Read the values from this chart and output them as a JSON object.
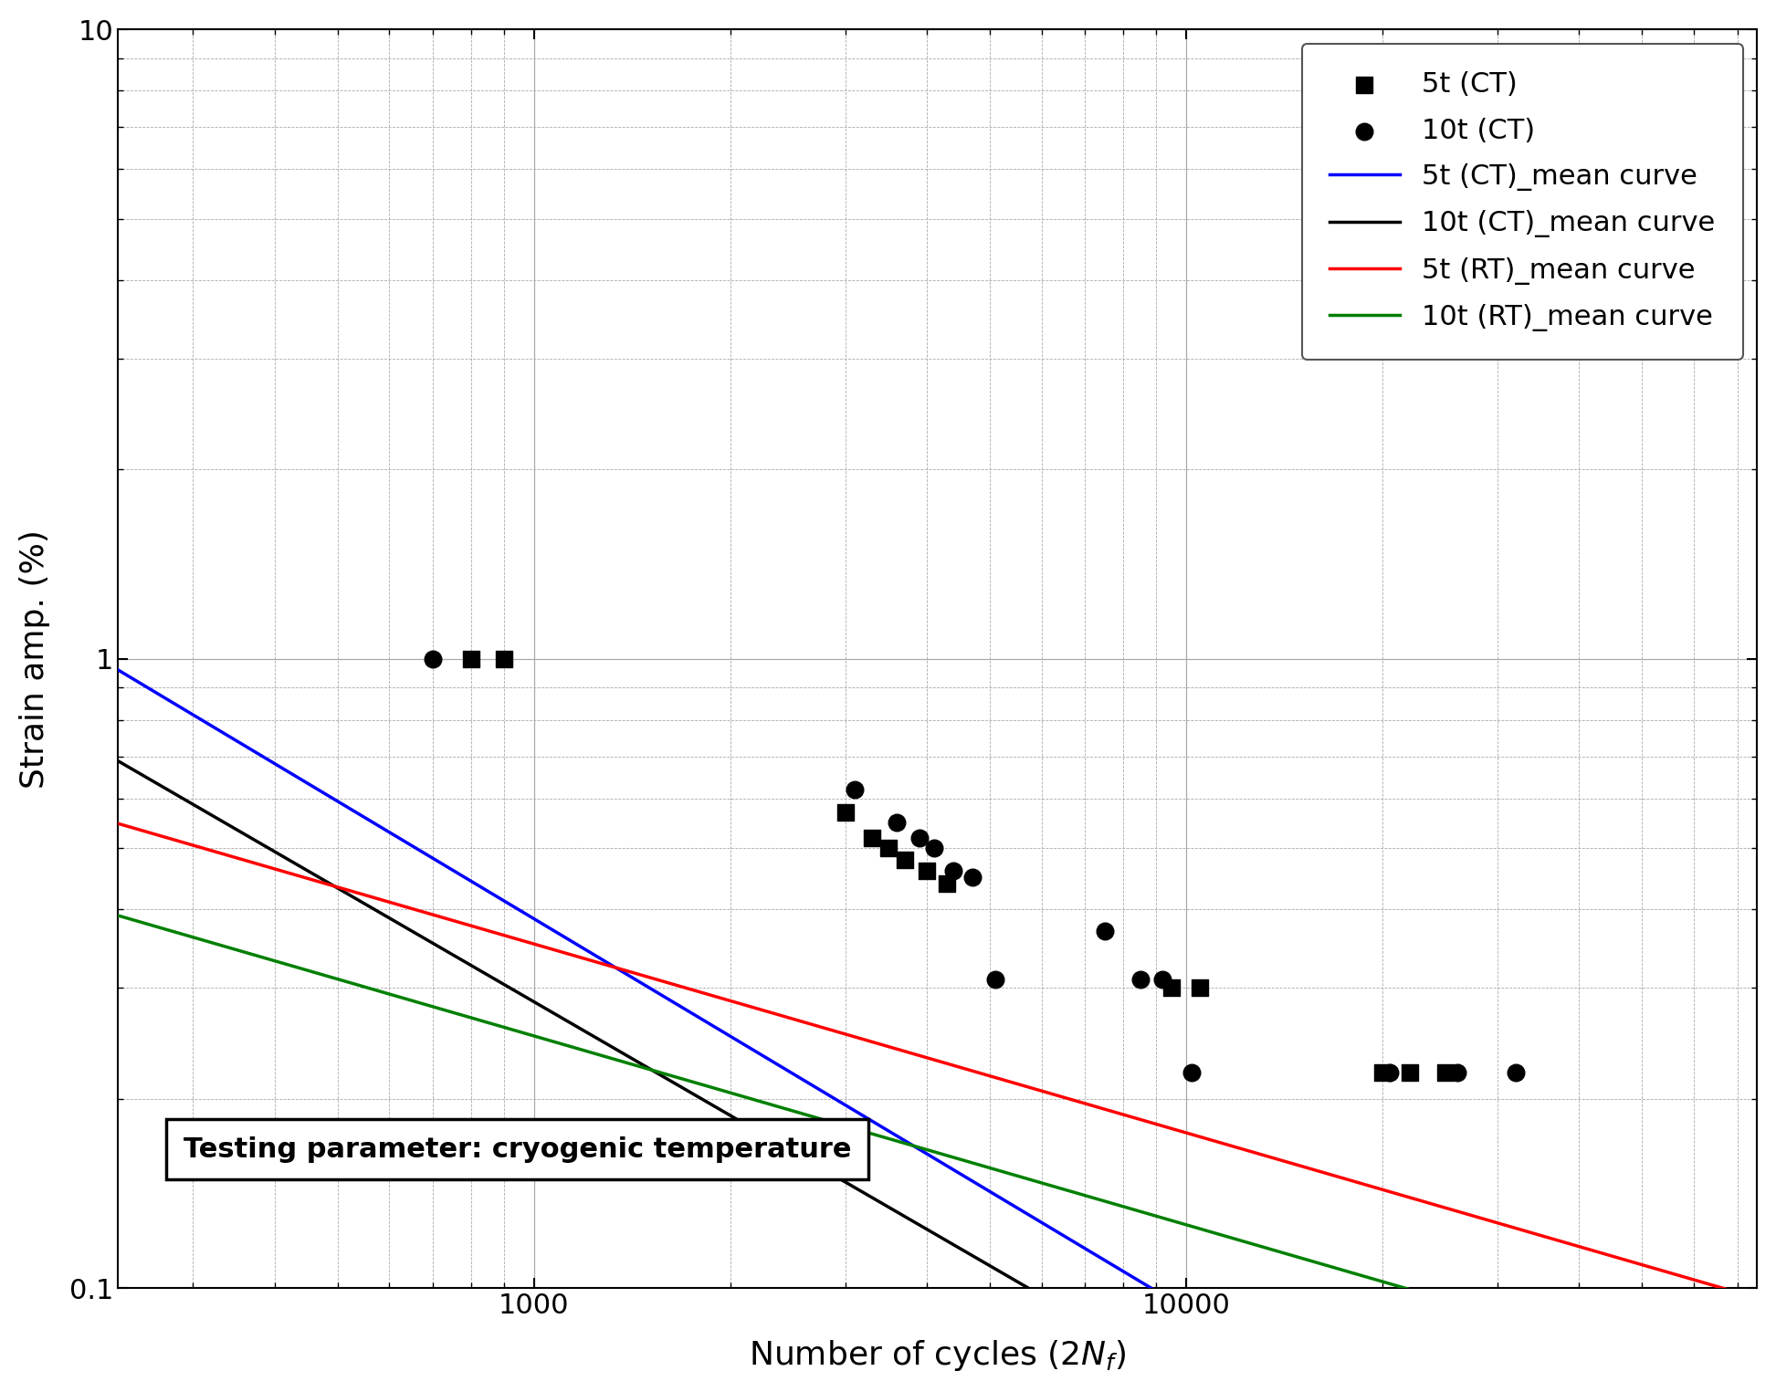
{
  "xlabel": "Number of cycles (2$N_f$)",
  "ylabel": "Strain amp. (%)",
  "xlim": [
    230,
    75000
  ],
  "ylim": [
    0.1,
    10
  ],
  "scatter_5t_CT": {
    "x": [
      800,
      900,
      3000,
      3300,
      3500,
      3700,
      4000,
      4300,
      9500,
      10500,
      20000,
      22000,
      25000
    ],
    "y": [
      1.0,
      1.0,
      0.57,
      0.52,
      0.5,
      0.48,
      0.46,
      0.44,
      0.3,
      0.3,
      0.22,
      0.22,
      0.22
    ],
    "marker": "s",
    "color": "black",
    "label": "5t (CT)"
  },
  "scatter_10t_CT": {
    "x": [
      700,
      3100,
      3600,
      3900,
      4100,
      4400,
      4700,
      5100,
      7500,
      8500,
      9200,
      10200,
      20500,
      26000,
      32000
    ],
    "y": [
      1.0,
      0.62,
      0.55,
      0.52,
      0.5,
      0.46,
      0.45,
      0.31,
      0.37,
      0.31,
      0.31,
      0.22,
      0.22,
      0.22,
      0.22
    ],
    "marker": "o",
    "color": "black",
    "label": "10t (CT)"
  },
  "curve_5t_CT": {
    "x_start": 230,
    "x_end": 60000,
    "C": 28.0,
    "b": -0.62,
    "color": "blue",
    "label": "5t (CT)_mean curve"
  },
  "curve_10t_CT": {
    "x_start": 230,
    "x_end": 60000,
    "C": 18.0,
    "b": -0.6,
    "color": "black",
    "label": "10t (CT)_mean curve"
  },
  "curve_5t_RT": {
    "x_start": 230,
    "x_end": 75000,
    "C": 2.8,
    "b": -0.3,
    "color": "red",
    "label": "5t (RT)_mean curve"
  },
  "curve_10t_RT": {
    "x_start": 230,
    "x_end": 75000,
    "C": 2.0,
    "b": -0.3,
    "color": "green",
    "label": "10t (RT)_mean curve"
  },
  "annotation": "Testing parameter: cryogenic temperature",
  "background_color": "white",
  "major_grid_color": "#aaaaaa",
  "minor_grid_color": "#aaaaaa",
  "legend_fontsize": 22,
  "axis_label_fontsize": 26,
  "tick_fontsize": 22,
  "marker_size": 180,
  "linewidth": 2.5
}
